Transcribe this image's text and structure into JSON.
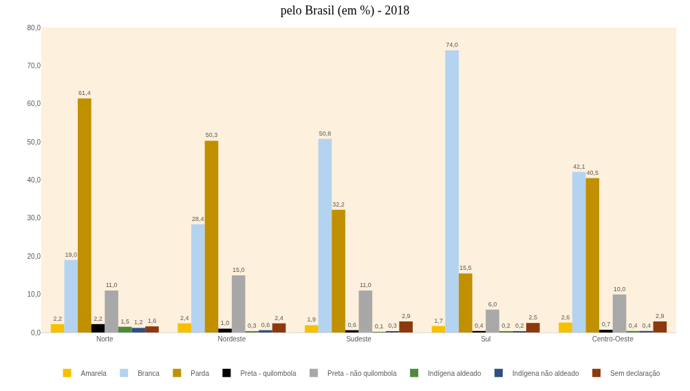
{
  "chart_data": {
    "type": "bar",
    "title": "pelo Brasil (em %) - 2018",
    "categories": [
      "Norte",
      "Nordeste",
      "Sudeste",
      "Sul",
      "Centro-Oeste"
    ],
    "series": [
      {
        "name": "Amarela",
        "color": "#f5c000",
        "values": [
          2.2,
          2.4,
          1.9,
          1.7,
          2.6
        ],
        "value_labels": [
          "2,2",
          "2,4",
          "1,9",
          "1,7",
          "2,6"
        ]
      },
      {
        "name": "Branca",
        "color": "#b4d3f0",
        "values": [
          19.0,
          28.4,
          50.8,
          74.0,
          42.1
        ],
        "value_labels": [
          "19,0",
          "28,4",
          "50,8",
          "74,0",
          "42,1"
        ]
      },
      {
        "name": "Parda",
        "color": "#c09000",
        "values": [
          61.4,
          50.3,
          32.2,
          15.5,
          40.5
        ],
        "value_labels": [
          "61,4",
          "50,3",
          "32,2",
          "15,5",
          "40,5"
        ]
      },
      {
        "name": "Preta - quilombola",
        "color": "#000000",
        "values": [
          2.2,
          1.0,
          0.6,
          0.4,
          0.7
        ],
        "value_labels": [
          "2,2",
          "1,0",
          "0,6",
          "0,4",
          "0,7"
        ]
      },
      {
        "name": "Preta - não quilombola",
        "color": "#a8a8a8",
        "values": [
          11.0,
          15.0,
          11.0,
          6.0,
          10.0
        ],
        "value_labels": [
          "11,0",
          "15,0",
          "11,0",
          "6,0",
          "10,0"
        ]
      },
      {
        "name": "Indígena aldeado",
        "color": "#4e8a3c",
        "values": [
          1.5,
          0.3,
          0.1,
          0.2,
          0.4
        ],
        "value_labels": [
          "1,5",
          "0,3",
          "0,1",
          "0,2",
          "0,4"
        ]
      },
      {
        "name": "Indígena não aldeado",
        "color": "#2f4f7f",
        "values": [
          1.2,
          0.6,
          0.3,
          0.2,
          0.4
        ],
        "value_labels": [
          "1,2",
          "0,6",
          "0,3",
          "0,2",
          "0,4"
        ]
      },
      {
        "name": "Sem declaração",
        "color": "#8b3a0f",
        "values": [
          1.6,
          2.4,
          2.9,
          2.5,
          2.9
        ],
        "value_labels": [
          "1,6",
          "2,4",
          "2,9",
          "2,5",
          "2,9"
        ]
      }
    ],
    "ylim": [
      0,
      80
    ],
    "yticks": [
      {
        "value": 0,
        "label": "0,0"
      },
      {
        "value": 10,
        "label": "10,0"
      },
      {
        "value": 20,
        "label": "20,0"
      },
      {
        "value": 30,
        "label": "30,0"
      },
      {
        "value": 40,
        "label": "40,0"
      },
      {
        "value": 50,
        "label": "50,0"
      },
      {
        "value": 60,
        "label": "60,0"
      },
      {
        "value": 70,
        "label": "70,0"
      },
      {
        "value": 80,
        "label": "80,0"
      }
    ],
    "grid": false,
    "legend": "bottom"
  }
}
